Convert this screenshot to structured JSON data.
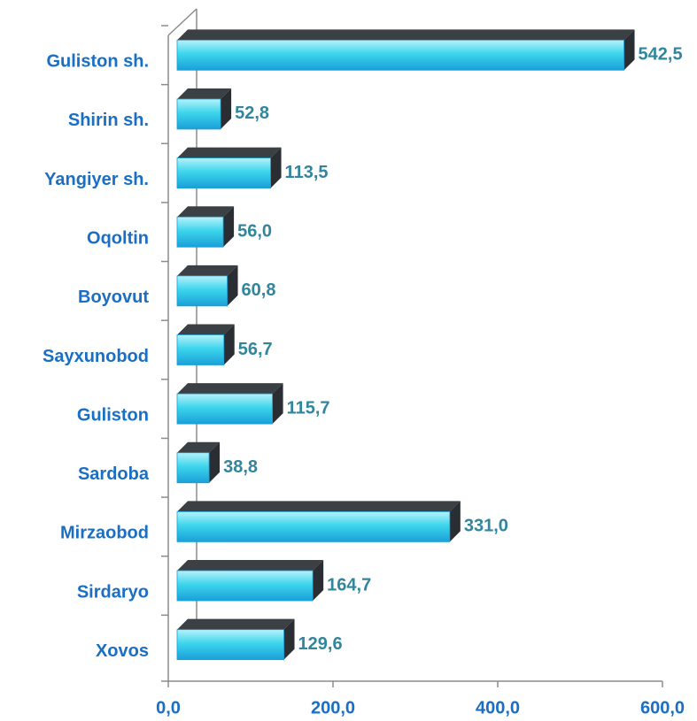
{
  "chart_data": {
    "type": "bar3d",
    "categories": [
      "Guliston sh.",
      "Shirin sh.",
      "Yangiyer sh.",
      "Oqoltin",
      "Boyovut",
      "Sayxunobod",
      "Guliston",
      "Sardoba",
      "Mirzaobod",
      "Sirdaryo",
      "Xovos"
    ],
    "values": [
      542.5,
      52.8,
      113.5,
      56.0,
      60.8,
      56.7,
      115.7,
      38.8,
      331.0,
      164.7,
      129.6
    ],
    "value_labels": [
      "542,5",
      "52,8",
      "113,5",
      "56,0",
      "60,8",
      "56,7",
      "115,7",
      "38,8",
      "331,0",
      "164,7",
      "129,6"
    ],
    "color": "#3dd0e8",
    "xlim": [
      0,
      600
    ],
    "xticks": [
      {
        "value": 0,
        "label": "0,0"
      },
      {
        "value": 200,
        "label": "200,0"
      },
      {
        "value": 400,
        "label": "400,0"
      },
      {
        "value": 600,
        "label": "600,0"
      }
    ]
  }
}
